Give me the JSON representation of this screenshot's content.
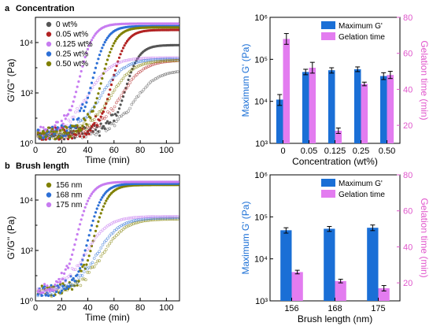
{
  "colors": {
    "bar_primary": "#1a6fd6",
    "bar_secondary": "#e37cf0",
    "axis_secondary": "#e057cc",
    "axis_primary": "#1a6fd6"
  },
  "panel_a": {
    "letter": "a",
    "title": "Concentration"
  },
  "panel_b": {
    "letter": "b",
    "title": "Brush length"
  },
  "chart_data": [
    {
      "id": "a-left",
      "type": "scatter",
      "xlabel": "Time (min)",
      "ylabel": "G'/G'' (Pa)",
      "xlim": [
        0,
        110
      ],
      "ylim": [
        1,
        100000
      ],
      "yscale": "log",
      "xticks": [
        0,
        20,
        40,
        60,
        80,
        100
      ],
      "yticks": [
        1,
        100,
        10000
      ],
      "ytick_labels": [
        "10⁰",
        "10²",
        "10⁴"
      ],
      "legend_position": "top-left",
      "series": [
        {
          "name": "0 wt%",
          "color": "#555555",
          "onset": 68,
          "plateau": 3.9,
          "gpp_plateau": 2.9
        },
        {
          "name": "0.05 wt%",
          "color": "#b22222",
          "onset": 58,
          "plateau": 4.5,
          "gpp_plateau": 3.3
        },
        {
          "name": "0.125 wt%",
          "color": "#c77cf0",
          "onset": 33,
          "plateau": 4.75,
          "gpp_plateau": 3.4
        },
        {
          "name": "0.25 wt%",
          "color": "#2c6fd6",
          "onset": 43,
          "plateau": 4.65,
          "gpp_plateau": 3.35
        },
        {
          "name": "0.50 wt%",
          "color": "#808000",
          "onset": 50,
          "plateau": 4.6,
          "gpp_plateau": 3.3
        }
      ]
    },
    {
      "id": "a-right",
      "type": "bar",
      "xlabel": "Concentration (wt%)",
      "ylabel": "Maximum G' (Pa)",
      "y2label": "Gelation time (min)",
      "categories": [
        "0",
        "0.05",
        "0.125",
        "0.25",
        "0.50"
      ],
      "ylim": [
        1000,
        1000000
      ],
      "yscale": "log",
      "yticks": [
        1000,
        10000,
        100000,
        1000000
      ],
      "ytick_labels": [
        "10³",
        "10⁴",
        "10⁵",
        "10⁶"
      ],
      "y2lim": [
        10,
        80
      ],
      "y2ticks": [
        20,
        40,
        60,
        80
      ],
      "legend_position": "top-right",
      "series": [
        {
          "name": "Maximum G'",
          "axis": "left",
          "values": [
            11000,
            50000,
            55000,
            58000,
            40000
          ],
          "err_low": [
            8000,
            43000,
            47000,
            51000,
            33000
          ],
          "err_high": [
            14500,
            58000,
            63000,
            66000,
            48000
          ]
        },
        {
          "name": "Gelation time",
          "axis": "right",
          "values": [
            68,
            52,
            17,
            43,
            48
          ],
          "err": [
            3,
            3,
            1.5,
            1,
            2
          ]
        }
      ]
    },
    {
      "id": "b-left",
      "type": "scatter",
      "xlabel": "Time (min)",
      "ylabel": "G'/G'' (Pa)",
      "xlim": [
        0,
        110
      ],
      "ylim": [
        1,
        100000
      ],
      "yscale": "log",
      "xticks": [
        0,
        20,
        40,
        60,
        80,
        100
      ],
      "yticks": [
        1,
        100,
        10000
      ],
      "ytick_labels": [
        "10⁰",
        "10²",
        "10⁴"
      ],
      "legend_position": "top-left",
      "series": [
        {
          "name": "156 nm",
          "color": "#808000",
          "onset": 44,
          "plateau": 4.6,
          "gpp_plateau": 3.25
        },
        {
          "name": "168 nm",
          "color": "#2c6fd6",
          "onset": 40,
          "plateau": 4.65,
          "gpp_plateau": 3.3
        },
        {
          "name": "175 nm",
          "color": "#c77cf0",
          "onset": 31,
          "plateau": 4.72,
          "gpp_plateau": 3.35
        }
      ]
    },
    {
      "id": "b-right",
      "type": "bar",
      "xlabel": "Brush length (nm)",
      "ylabel": "Maximum G' (Pa)",
      "y2label": "Gelation time (min)",
      "categories": [
        "156",
        "168",
        "175"
      ],
      "ylim": [
        1000,
        1000000
      ],
      "yscale": "log",
      "yticks": [
        1000,
        10000,
        100000,
        1000000
      ],
      "ytick_labels": [
        "10³",
        "10⁴",
        "10⁵",
        "10⁶"
      ],
      "y2lim": [
        10,
        80
      ],
      "y2ticks": [
        20,
        40,
        60,
        80
      ],
      "legend_position": "top-right",
      "series": [
        {
          "name": "Maximum G'",
          "axis": "left",
          "values": [
            48000,
            52000,
            55000
          ],
          "err_low": [
            41000,
            45000,
            47000
          ],
          "err_high": [
            55000,
            59000,
            64000
          ]
        },
        {
          "name": "Gelation time",
          "axis": "right",
          "values": [
            26,
            21,
            17
          ],
          "err": [
            1,
            1,
            1.5
          ]
        }
      ]
    }
  ]
}
